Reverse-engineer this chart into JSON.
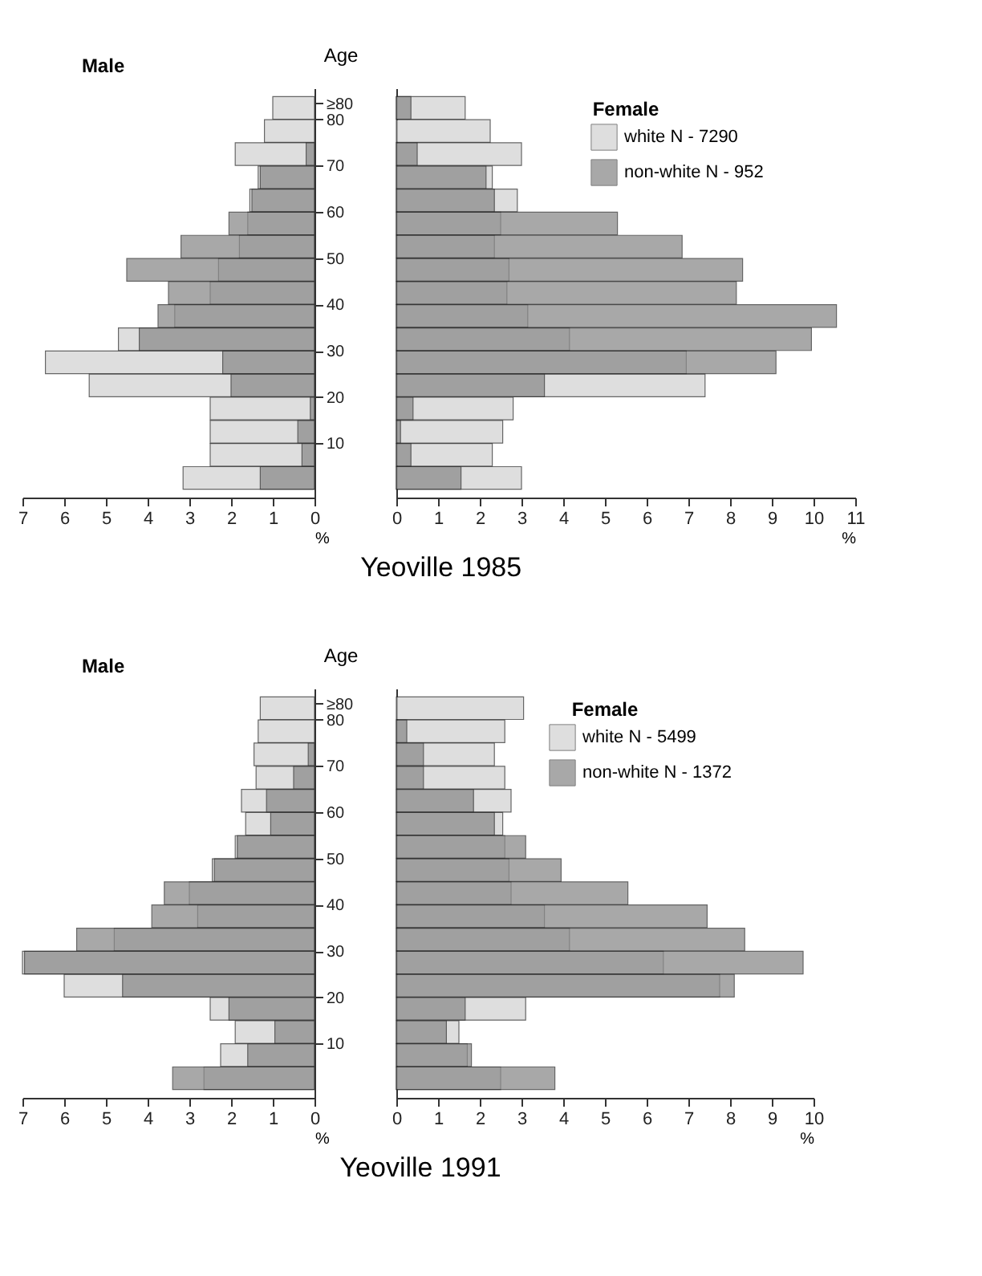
{
  "chart_data": [
    {
      "type": "bar",
      "orientation": "horizontal",
      "title": "Male",
      "xlabel": "%",
      "ylabel": "Age",
      "annotations": [
        "Yeoville 1985"
      ],
      "x": [
        82.5,
        77.5,
        72.5,
        67.5,
        62.5,
        57.5,
        52.5,
        47.5,
        42.5,
        37.5,
        32.5,
        27.5,
        22.5,
        17.5,
        12.5,
        7.5,
        2.5
      ],
      "xlim": [
        7,
        0
      ],
      "xticks": [
        7,
        6,
        5,
        4,
        3,
        2,
        1,
        0
      ],
      "ylim": [
        0,
        85
      ],
      "yticks": [
        10,
        20,
        30,
        40,
        50,
        60,
        70,
        80,
        {
          "value": 83.5,
          "label": "≥80"
        }
      ],
      "series": [
        {
          "color": "#d4d4d4",
          "values": [
            1.0,
            1.2,
            1.9,
            1.35,
            1.55,
            1.6,
            1.8,
            2.3,
            2.5,
            3.35,
            4.7,
            6.45,
            5.4,
            2.5,
            2.5,
            2.5,
            3.15
          ]
        },
        {
          "color": "#8c8c8c",
          "values": [
            null,
            null,
            0.2,
            1.3,
            1.5,
            2.05,
            3.2,
            4.5,
            3.5,
            3.75,
            4.2,
            2.2,
            2.0,
            0.1,
            0.4,
            0.3,
            1.3
          ]
        }
      ]
    },
    {
      "type": "bar",
      "orientation": "horizontal",
      "title": "Female",
      "xlabel": "%",
      "legend": "top right",
      "tick_labels": "x",
      "x": [
        82.5,
        77.5,
        72.5,
        67.5,
        62.5,
        57.5,
        52.5,
        47.5,
        42.5,
        37.5,
        32.5,
        27.5,
        22.5,
        17.5,
        12.5,
        7.5,
        2.5
      ],
      "xlim": [
        0,
        11
      ],
      "xticks": [
        0,
        1,
        2,
        3,
        4,
        5,
        6,
        7,
        8,
        9,
        10,
        11
      ],
      "ylim": [
        0,
        85
      ],
      "series": [
        {
          "name": "white  N - 7290",
          "color": "#d4d4d4",
          "values": [
            1.65,
            2.25,
            3.0,
            2.3,
            2.9,
            2.5,
            2.35,
            2.7,
            2.65,
            3.15,
            4.15,
            6.95,
            7.4,
            2.8,
            2.55,
            2.3,
            3.0
          ]
        },
        {
          "name": "non-white  N - 952",
          "color": "#8c8c8c",
          "values": [
            0.35,
            null,
            0.5,
            2.15,
            2.35,
            5.3,
            6.85,
            8.3,
            8.15,
            10.55,
            9.95,
            9.1,
            3.55,
            0.4,
            0.1,
            0.35,
            1.55
          ]
        }
      ]
    },
    {
      "type": "bar",
      "orientation": "horizontal",
      "title": "Male",
      "xlabel": "%",
      "ylabel": "Age",
      "annotations": [
        "Yeoville 1991"
      ],
      "x": [
        82.5,
        77.5,
        72.5,
        67.5,
        62.5,
        57.5,
        52.5,
        47.5,
        42.5,
        37.5,
        32.5,
        27.5,
        22.5,
        17.5,
        12.5,
        7.5,
        2.5
      ],
      "xlim": [
        7,
        0
      ],
      "xticks": [
        7,
        6,
        5,
        4,
        3,
        2,
        1,
        0
      ],
      "ylim": [
        0,
        85
      ],
      "yticks": [
        10,
        20,
        30,
        40,
        50,
        60,
        70,
        80,
        {
          "value": 83.5,
          "label": "≥80"
        }
      ],
      "series": [
        {
          "color": "#d4d4d4",
          "values": [
            1.3,
            1.35,
            1.45,
            1.4,
            1.75,
            1.65,
            1.9,
            2.45,
            3.0,
            2.8,
            4.8,
            7.0,
            6.0,
            2.5,
            1.9,
            2.25,
            2.65
          ]
        },
        {
          "color": "#8c8c8c",
          "values": [
            null,
            null,
            0.15,
            0.5,
            1.15,
            1.05,
            1.85,
            2.4,
            3.6,
            3.9,
            5.7,
            6.95,
            4.6,
            2.05,
            0.95,
            1.6,
            3.4
          ]
        }
      ]
    },
    {
      "type": "bar",
      "orientation": "horizontal",
      "title": "Female",
      "xlabel": "%",
      "legend": "top right",
      "tick_labels": "x",
      "x": [
        82.5,
        77.5,
        72.5,
        67.5,
        62.5,
        57.5,
        52.5,
        47.5,
        42.5,
        37.5,
        32.5,
        27.5,
        22.5,
        17.5,
        12.5,
        7.5,
        2.5
      ],
      "xlim": [
        0,
        10
      ],
      "xticks": [
        0,
        1,
        2,
        3,
        4,
        5,
        6,
        7,
        8,
        9,
        10
      ],
      "ylim": [
        0,
        85
      ],
      "series": [
        {
          "name": "white  N - 5499",
          "color": "#d4d4d4",
          "values": [
            3.05,
            2.6,
            2.35,
            2.6,
            2.75,
            2.55,
            2.6,
            2.7,
            2.75,
            3.55,
            4.15,
            6.4,
            7.75,
            3.1,
            1.5,
            1.7,
            2.5
          ]
        },
        {
          "name": "non-white  N - 1372",
          "color": "#8c8c8c",
          "values": [
            null,
            0.25,
            0.65,
            0.65,
            1.85,
            2.35,
            3.1,
            3.95,
            5.55,
            7.45,
            8.35,
            9.75,
            8.1,
            1.65,
            1.2,
            1.8,
            3.8
          ]
        }
      ]
    }
  ]
}
